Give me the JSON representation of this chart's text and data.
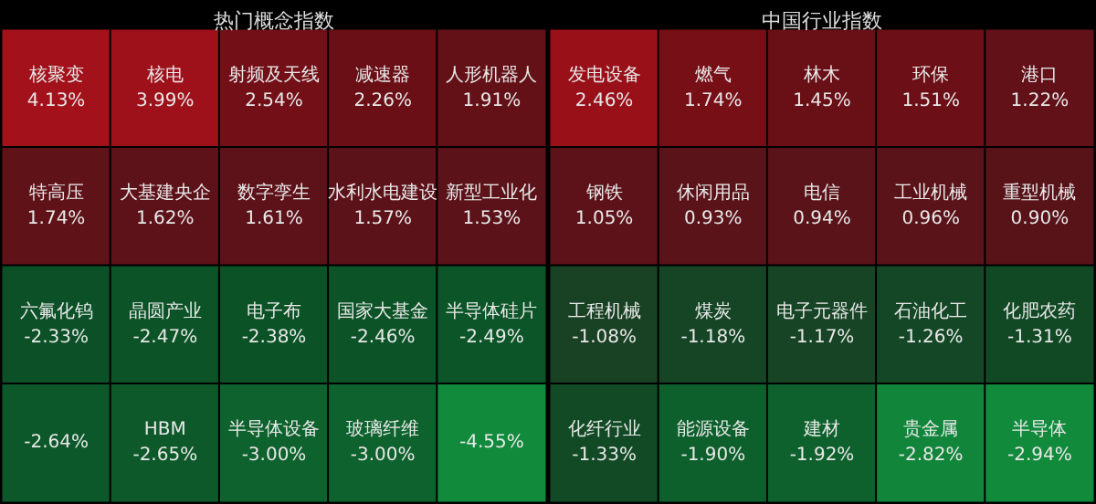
{
  "chart_data": [
    {
      "type": "other",
      "title": "热门概念指数",
      "categories": [
        "核聚变",
        "核电",
        "射频及天线",
        "减速器",
        "人形机器人",
        "特高压",
        "大基建央企",
        "数字孪生",
        "水利水电建设",
        "新型工业化",
        "六氟化钨",
        "晶圆产业",
        "电子布",
        "国家大基金",
        "半导体硅片",
        null,
        "HBM",
        "半导体设备",
        "玻璃纤维",
        null
      ],
      "values": [
        4.13,
        3.99,
        2.54,
        2.26,
        1.91,
        1.74,
        1.62,
        1.61,
        1.57,
        1.53,
        -2.33,
        -2.47,
        -2.38,
        -2.46,
        -2.49,
        -2.64,
        -2.65,
        -3.0,
        -3.0,
        -4.55
      ],
      "value_labels": [
        "4.13%",
        "3.99%",
        "2.54%",
        "2.26%",
        "1.91%",
        "1.74%",
        "1.62%",
        "1.61%",
        "1.57%",
        "1.53%",
        "-2.33%",
        "-2.47%",
        "-2.38%",
        "-2.46%",
        "-2.49%",
        "-2.64%",
        "-2.65%",
        "-3.00%",
        "-3.00%",
        "-4.55%"
      ]
    },
    {
      "type": "other",
      "title": "中国行业指数",
      "categories": [
        "发电设备",
        "燃气",
        "林木",
        "环保",
        "港口",
        "钢铁",
        "休闲用品",
        "电信",
        "工业机械",
        "重型机械",
        "工程机械",
        "煤炭",
        "电子元器件",
        "石油化工",
        "化肥农药",
        "化纤行业",
        "能源设备",
        "建材",
        "贵金属",
        "半导体"
      ],
      "values": [
        2.46,
        1.74,
        1.45,
        1.51,
        1.22,
        1.05,
        0.93,
        0.94,
        0.96,
        0.9,
        -1.08,
        -1.18,
        -1.17,
        -1.26,
        -1.31,
        -1.33,
        -1.9,
        -1.92,
        -2.82,
        -2.94
      ],
      "value_labels": [
        "2.46%",
        "1.74%",
        "1.45%",
        "1.51%",
        "1.22%",
        "1.05%",
        "0.93%",
        "0.94%",
        "0.96%",
        "0.90%",
        "-1.08%",
        "-1.18%",
        "-1.17%",
        "-1.26%",
        "-1.31%",
        "-1.33%",
        "-1.90%",
        "-1.92%",
        "-2.82%",
        "-2.94%"
      ]
    }
  ]
}
